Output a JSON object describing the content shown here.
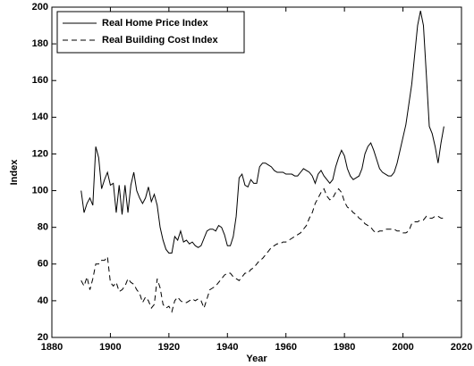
{
  "chart_data": {
    "type": "line",
    "xlabel": "Year",
    "ylabel": "Index",
    "x": [
      1890,
      1891,
      1892,
      1893,
      1894,
      1895,
      1896,
      1897,
      1898,
      1899,
      1900,
      1901,
      1902,
      1903,
      1904,
      1905,
      1906,
      1907,
      1908,
      1909,
      1910,
      1911,
      1912,
      1913,
      1914,
      1915,
      1916,
      1917,
      1918,
      1919,
      1920,
      1921,
      1922,
      1923,
      1924,
      1925,
      1926,
      1927,
      1928,
      1929,
      1930,
      1931,
      1932,
      1933,
      1934,
      1935,
      1936,
      1937,
      1938,
      1939,
      1940,
      1941,
      1942,
      1943,
      1944,
      1945,
      1946,
      1947,
      1948,
      1949,
      1950,
      1951,
      1952,
      1953,
      1954,
      1955,
      1956,
      1957,
      1958,
      1959,
      1960,
      1961,
      1962,
      1963,
      1964,
      1965,
      1966,
      1967,
      1968,
      1969,
      1970,
      1971,
      1972,
      1973,
      1974,
      1975,
      1976,
      1977,
      1978,
      1979,
      1980,
      1981,
      1982,
      1983,
      1984,
      1985,
      1986,
      1987,
      1988,
      1989,
      1990,
      1991,
      1992,
      1993,
      1994,
      1995,
      1996,
      1997,
      1998,
      1999,
      2000,
      2001,
      2002,
      2003,
      2004,
      2005,
      2006,
      2007,
      2008,
      2009,
      2010,
      2011,
      2012,
      2013,
      2014
    ],
    "series": [
      {
        "name": "Real Home Price Index",
        "color": "#000000",
        "style": "solid",
        "values": [
          100,
          88,
          93,
          96,
          92,
          124,
          118,
          101,
          106,
          110,
          103,
          104,
          88,
          103,
          87,
          103,
          88,
          103,
          110,
          100,
          96,
          93,
          96,
          102,
          94,
          98,
          92,
          80,
          73,
          68,
          66,
          66,
          75,
          73,
          78,
          72,
          73,
          71,
          72,
          70,
          69,
          70,
          74,
          78,
          79,
          79,
          78,
          81,
          80,
          76,
          70,
          70,
          75,
          86,
          107,
          109,
          103,
          102,
          106,
          104,
          104,
          113,
          115,
          115,
          114,
          113,
          111,
          110,
          110,
          110,
          109,
          109,
          109,
          108,
          108,
          110,
          112,
          111,
          110,
          108,
          104,
          109,
          111,
          108,
          106,
          104,
          106,
          113,
          118,
          122,
          119,
          112,
          108,
          106,
          107,
          108,
          112,
          120,
          124,
          126,
          122,
          117,
          112,
          110,
          109,
          108,
          108,
          110,
          115,
          122,
          129,
          136,
          147,
          158,
          174,
          190,
          198,
          190,
          163,
          135,
          131,
          124,
          115,
          126,
          135
        ]
      },
      {
        "name": "Real Building Cost Index",
        "color": "#000000",
        "style": "dashed",
        "values": [
          51,
          48,
          53,
          46,
          52,
          60,
          60,
          62,
          62,
          64,
          50,
          48,
          50,
          45,
          46,
          48,
          52,
          50,
          49,
          46,
          44,
          39,
          42,
          40,
          36,
          38,
          52,
          47,
          38,
          36,
          37,
          34,
          40,
          42,
          40,
          39,
          39,
          40,
          41,
          40,
          41,
          40,
          36,
          41,
          46,
          47,
          48,
          50,
          52,
          54,
          55,
          55,
          53,
          52,
          51,
          53,
          55,
          55,
          57,
          58,
          60,
          62,
          63,
          65,
          67,
          69,
          70,
          71,
          71,
          72,
          72,
          73,
          74,
          75,
          76,
          77,
          79,
          81,
          85,
          88,
          93,
          96,
          99,
          101,
          97,
          95,
          96,
          99,
          101,
          99,
          94,
          91,
          90,
          88,
          87,
          85,
          84,
          82,
          81,
          80,
          78,
          77,
          78,
          78,
          79,
          79,
          79,
          79,
          78,
          78,
          77,
          77,
          78,
          82,
          83,
          83,
          84,
          84,
          86,
          85,
          85,
          86,
          86,
          85,
          85
        ]
      }
    ],
    "xlim": [
      1880,
      2020
    ],
    "xticks": [
      1880,
      1900,
      1920,
      1940,
      1960,
      1980,
      2000,
      2020
    ],
    "ylim": [
      20,
      200
    ],
    "yticks": [
      20,
      40,
      60,
      80,
      100,
      120,
      140,
      160,
      180,
      200
    ],
    "legend": "upper left",
    "grid": false
  }
}
